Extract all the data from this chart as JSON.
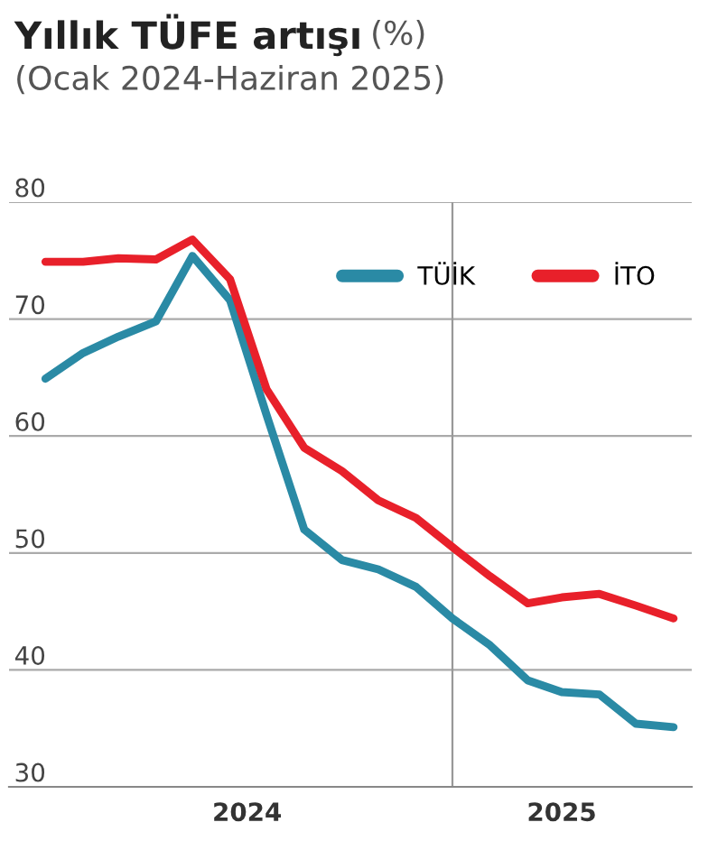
{
  "chart_data": {
    "type": "line",
    "title": "Yıllık TÜFE artışı",
    "subtitle": "(Ocak 2024-Haziran 2025)",
    "ylabel": "(%)",
    "x": [
      "2024-01",
      "2024-02",
      "2024-03",
      "2024-04",
      "2024-05",
      "2024-06",
      "2024-07",
      "2024-08",
      "2024-09",
      "2024-10",
      "2024-11",
      "2024-12",
      "2025-01",
      "2025-02",
      "2025-03",
      "2025-04",
      "2025-05",
      "2025-06"
    ],
    "series": [
      {
        "name": "TÜİK",
        "color": "#2a8aa5",
        "values": [
          64.9,
          67.1,
          68.5,
          69.8,
          75.4,
          71.6,
          61.8,
          52.0,
          49.4,
          48.6,
          47.1,
          44.4,
          42.1,
          39.1,
          38.1,
          37.9,
          35.4,
          35.1
        ]
      },
      {
        "name": "İTO",
        "color": "#e8202a",
        "values": [
          74.9,
          74.9,
          75.2,
          75.1,
          76.8,
          73.4,
          64.0,
          59.0,
          57.0,
          54.5,
          53.0,
          50.5,
          48.0,
          45.7,
          46.2,
          46.5,
          45.5,
          44.4
        ]
      }
    ],
    "xlim": [
      "2023-12-02",
      "2025-06-16"
    ],
    "ylim": [
      30,
      80
    ],
    "yticks": [
      30,
      40,
      50,
      60,
      70,
      80
    ],
    "xticks": [
      {
        "value": "2024-06-15",
        "label": "2024"
      },
      {
        "value": "2025-03-01",
        "label": "2025"
      }
    ],
    "ref_lines": [
      {
        "axis": "x",
        "value": "2024-12-01",
        "label": null,
        "color": "#999999"
      }
    ],
    "grid": "y",
    "legend": "top right",
    "marker": "none",
    "line_style": "solid"
  }
}
